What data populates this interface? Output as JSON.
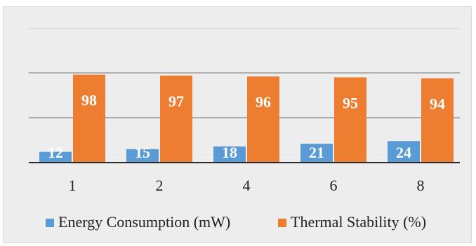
{
  "chart_data": {
    "type": "bar",
    "categories": [
      "1",
      "2",
      "4",
      "6",
      "8"
    ],
    "series": [
      {
        "name": "Energy Consumption (mW)",
        "values": [
          12,
          15,
          18,
          21,
          24
        ],
        "color": "#5b9bd5"
      },
      {
        "name": "Thermal Stability (%)",
        "values": [
          98,
          97,
          96,
          95,
          94
        ],
        "color": "#ed7d31"
      }
    ],
    "title": "",
    "xlabel": "",
    "ylabel": "",
    "ylim": [
      0,
      100
    ],
    "gridlines": [
      40,
      80,
      120
    ],
    "grid": true,
    "data_labels": true,
    "legend": "bottom"
  }
}
